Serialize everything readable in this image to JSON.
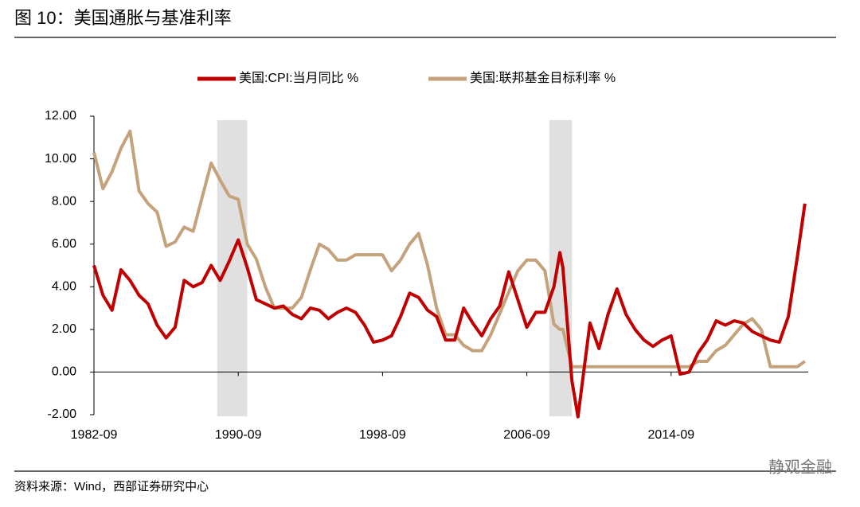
{
  "title": "图 10：美国通胀与基准利率",
  "source": "资料来源：Wind，西部证券研究中心",
  "watermark": "静观金融",
  "chart_data": {
    "type": "line",
    "x": [
      "1982-09",
      "1983-03",
      "1983-09",
      "1984-03",
      "1984-09",
      "1985-03",
      "1985-09",
      "1986-03",
      "1986-09",
      "1987-03",
      "1987-09",
      "1988-03",
      "1988-09",
      "1989-03",
      "1989-09",
      "1990-03",
      "1990-09",
      "1991-03",
      "1991-09",
      "1992-03",
      "1992-09",
      "1993-03",
      "1993-09",
      "1994-03",
      "1994-09",
      "1995-03",
      "1995-09",
      "1996-03",
      "1996-09",
      "1997-03",
      "1997-09",
      "1998-03",
      "1998-09",
      "1999-03",
      "1999-09",
      "2000-03",
      "2000-09",
      "2001-03",
      "2001-09",
      "2002-03",
      "2002-09",
      "2003-03",
      "2003-09",
      "2004-03",
      "2004-09",
      "2005-03",
      "2005-09",
      "2006-03",
      "2006-09",
      "2007-03",
      "2007-09",
      "2008-03",
      "2008-07",
      "2008-09",
      "2009-03",
      "2009-07",
      "2010-03",
      "2010-09",
      "2011-03",
      "2011-09",
      "2012-03",
      "2012-09",
      "2013-03",
      "2013-09",
      "2014-03",
      "2014-09",
      "2015-03",
      "2015-09",
      "2016-03",
      "2016-09",
      "2017-03",
      "2017-09",
      "2018-03",
      "2018-09",
      "2019-03",
      "2019-09",
      "2020-03",
      "2020-09",
      "2021-03",
      "2021-09",
      "2022-02"
    ],
    "series": [
      {
        "name": "美国:CPI:当月同比 %",
        "color": "#c00000",
        "values": [
          5.0,
          3.6,
          2.9,
          4.8,
          4.3,
          3.6,
          3.2,
          2.2,
          1.6,
          2.1,
          4.3,
          4.0,
          4.2,
          5.0,
          4.3,
          5.2,
          6.2,
          4.9,
          3.4,
          3.2,
          3.0,
          3.1,
          2.7,
          2.5,
          3.0,
          2.9,
          2.5,
          2.8,
          3.0,
          2.8,
          2.2,
          1.4,
          1.5,
          1.7,
          2.6,
          3.7,
          3.5,
          2.9,
          2.6,
          1.5,
          1.5,
          3.0,
          2.3,
          1.7,
          2.5,
          3.1,
          4.7,
          3.4,
          2.1,
          2.8,
          2.8,
          4.0,
          5.6,
          4.9,
          -0.4,
          -2.1,
          2.3,
          1.1,
          2.7,
          3.9,
          2.7,
          2.0,
          1.5,
          1.2,
          1.5,
          1.7,
          -0.1,
          0.0,
          0.9,
          1.5,
          2.4,
          2.2,
          2.4,
          2.3,
          1.9,
          1.7,
          1.5,
          1.4,
          2.6,
          5.4,
          7.9
        ]
      },
      {
        "name": "美国:联邦基金目标利率 %",
        "color": "#c4a27c",
        "values": [
          10.3,
          8.6,
          9.4,
          10.5,
          11.3,
          8.5,
          7.9,
          7.5,
          5.9,
          6.1,
          6.8,
          6.6,
          8.2,
          9.8,
          9.0,
          8.25,
          8.1,
          6.0,
          5.3,
          4.0,
          3.0,
          3.0,
          3.0,
          3.5,
          4.8,
          6.0,
          5.75,
          5.25,
          5.25,
          5.5,
          5.5,
          5.5,
          5.5,
          4.75,
          5.25,
          6.0,
          6.5,
          5.0,
          3.0,
          1.75,
          1.75,
          1.25,
          1.0,
          1.0,
          1.75,
          2.75,
          3.75,
          4.75,
          5.25,
          5.25,
          4.75,
          2.25,
          2.0,
          2.0,
          0.25,
          0.25,
          0.25,
          0.25,
          0.25,
          0.25,
          0.25,
          0.25,
          0.25,
          0.25,
          0.25,
          0.25,
          0.25,
          0.25,
          0.5,
          0.5,
          1.0,
          1.25,
          1.75,
          2.25,
          2.5,
          2.0,
          0.25,
          0.25,
          0.25,
          0.25,
          0.5
        ]
      }
    ],
    "shaded_periods": [
      {
        "start": "1989-07",
        "end": "1991-03"
      },
      {
        "start": "2007-12",
        "end": "2009-03"
      }
    ],
    "ylim": [
      -2,
      12
    ],
    "yticks": [
      {
        "value": -2,
        "label": "-2.00"
      },
      {
        "value": 0,
        "label": "0.00"
      },
      {
        "value": 2,
        "label": "2.00"
      },
      {
        "value": 4,
        "label": "4.00"
      },
      {
        "value": 6,
        "label": "6.00"
      },
      {
        "value": 8,
        "label": "8.00"
      },
      {
        "value": 10,
        "label": "10.00"
      },
      {
        "value": 12,
        "label": "12.00"
      }
    ],
    "xticks": [
      "1982-09",
      "1990-09",
      "1998-09",
      "2006-09",
      "2014-09"
    ],
    "legend": "top"
  }
}
